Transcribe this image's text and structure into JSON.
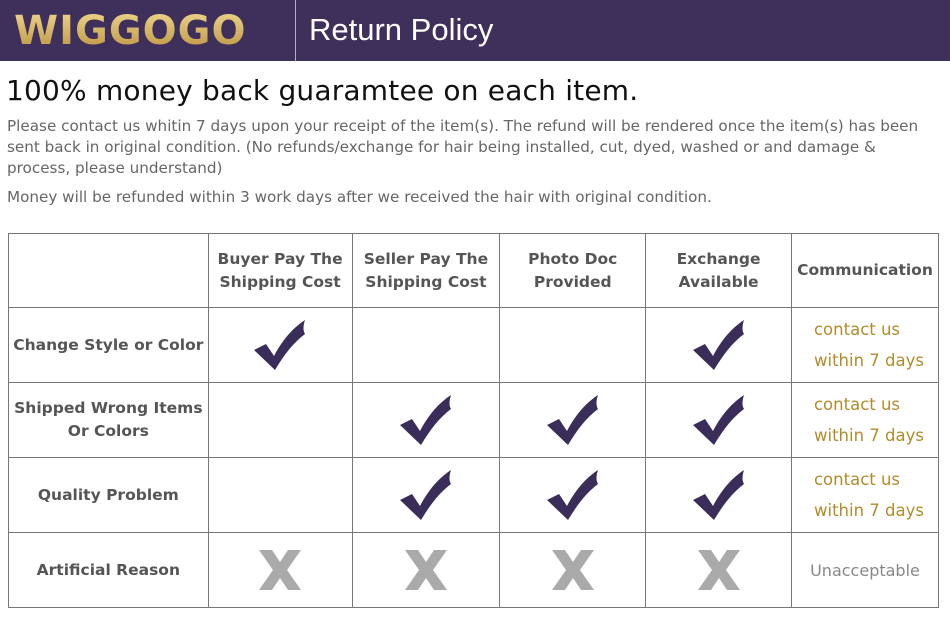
{
  "header": {
    "logo": "WIGGOGO",
    "title": "Return Policy",
    "color": "#3e2f5b"
  },
  "headline": "100% money back guaramtee on each item.",
  "paragraphs": [
    "Please contact us whitin 7 days upon your receipt of the item(s). The refund will be rendered once the item(s) has been sent back in original condition. (No refunds/exchange for hair being installed, cut, dyed, washed or and damage & process, please understand)",
    "Money will be refunded within 3 work days after we received the hair with original condition."
  ],
  "table": {
    "columns": [
      "",
      "Buyer Pay The Shipping Cost",
      "Seller Pay The Shipping Cost",
      "Photo Doc Provided",
      "Exchange Available",
      "Communication"
    ],
    "rows": [
      {
        "label": "Change Style or Color",
        "cells": [
          "check",
          "",
          "",
          "check"
        ],
        "communication": [
          "contact us",
          "within 7 days"
        ]
      },
      {
        "label": "Shipped Wrong Items Or Colors",
        "cells": [
          "",
          "check",
          "check",
          "check"
        ],
        "communication": [
          "contact us",
          "within 7 days"
        ]
      },
      {
        "label": "Quality Problem",
        "cells": [
          "",
          "check",
          "check",
          "check"
        ],
        "communication": [
          "contact us",
          "within 7 days"
        ]
      },
      {
        "label": "Artificial Reason",
        "cells": [
          "x",
          "x",
          "x",
          "x"
        ],
        "communication": [
          "Unacceptable"
        ]
      }
    ],
    "check_color": "#3a2d5a",
    "x_color": "#aaaaaa",
    "communication_color": "#b28c2c"
  }
}
